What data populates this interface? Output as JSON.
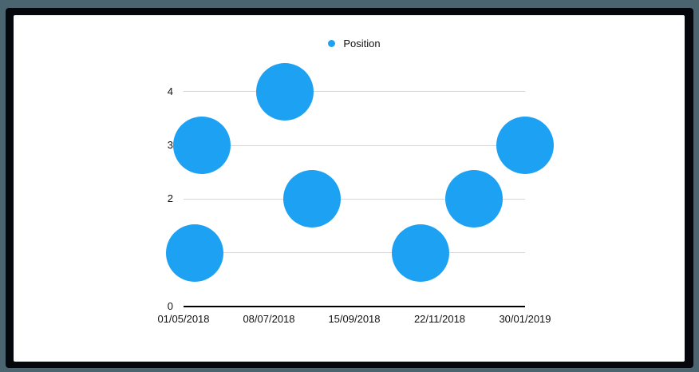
{
  "chart_data": {
    "type": "scatter",
    "title": "",
    "legend": {
      "position": "top",
      "entries": [
        "Position"
      ]
    },
    "series": [
      {
        "name": "Position",
        "color": "#1DA1F2",
        "points": [
          {
            "date": "10/05/2018",
            "value": 1
          },
          {
            "date": "16/05/2018",
            "value": 3
          },
          {
            "date": "21/07/2018",
            "value": 4
          },
          {
            "date": "12/08/2018",
            "value": 2
          },
          {
            "date": "07/11/2018",
            "value": 1
          },
          {
            "date": "20/12/2018",
            "value": 2
          },
          {
            "date": "30/01/2019",
            "value": 3
          }
        ]
      }
    ],
    "x_axis": {
      "ticks": [
        "01/05/2018",
        "08/07/2018",
        "15/09/2018",
        "22/11/2018",
        "30/01/2019"
      ]
    },
    "y_axis": {
      "ticks": [
        "0",
        "1",
        "2",
        "3",
        "4"
      ],
      "range": [
        0,
        4.5
      ]
    },
    "grid": {
      "horizontal": true,
      "color": "#D6D6D6",
      "axis_line_color": "#000000"
    }
  },
  "frame": {
    "outer_color": "#4A6570",
    "inner_color": "#04080D",
    "canvas_color": "#FFFFFF"
  }
}
